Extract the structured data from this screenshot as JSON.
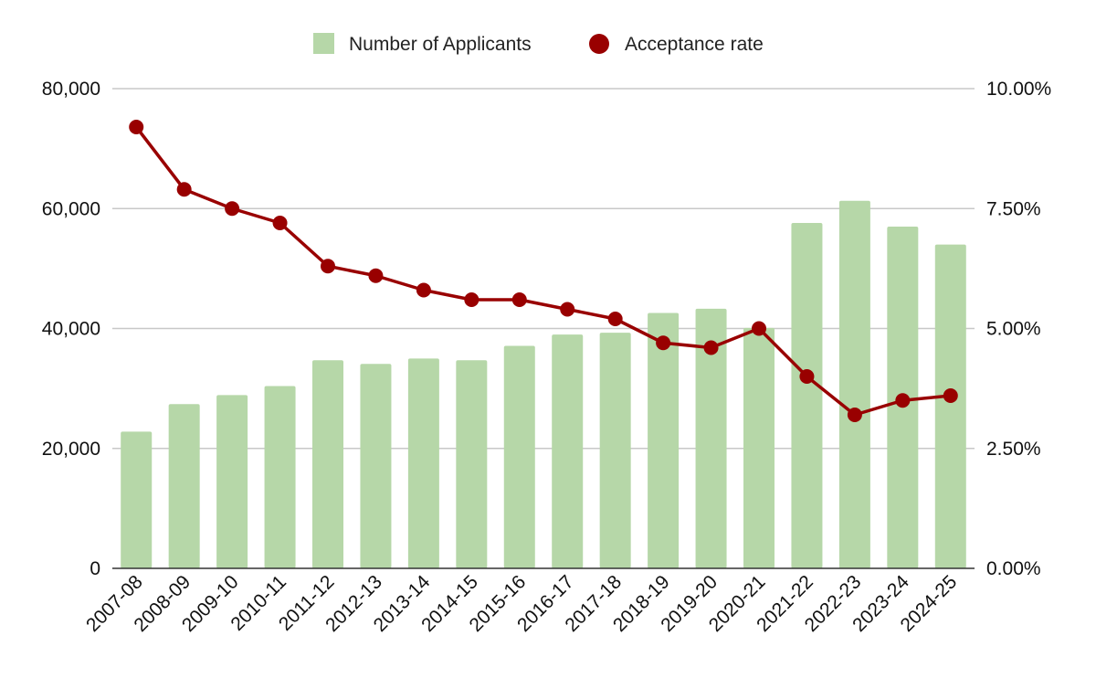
{
  "chart_data": {
    "type": "bar",
    "categories": [
      "2007-08",
      "2008-09",
      "2009-10",
      "2010-11",
      "2011-12",
      "2012-13",
      "2013-14",
      "2014-15",
      "2015-16",
      "2016-17",
      "2017-18",
      "2018-19",
      "2019-20",
      "2020-21",
      "2021-22",
      "2022-23",
      "2023-24",
      "2024-25"
    ],
    "series": [
      {
        "name": "Number of Applicants",
        "type": "bar",
        "axis": "left",
        "color": "#b6d7a8",
        "values": [
          22800,
          27400,
          28900,
          30400,
          34700,
          34100,
          35000,
          34700,
          37100,
          39000,
          39300,
          42600,
          43300,
          40100,
          57600,
          61300,
          57000,
          54000
        ]
      },
      {
        "name": "Acceptance rate",
        "type": "line",
        "axis": "right",
        "color": "#990000",
        "values": [
          0.092,
          0.079,
          0.075,
          0.072,
          0.063,
          0.061,
          0.058,
          0.056,
          0.056,
          0.054,
          0.052,
          0.047,
          0.046,
          0.05,
          0.04,
          0.032,
          0.035,
          0.036
        ]
      }
    ],
    "y_left": {
      "lim": [
        0,
        80000
      ],
      "ticks": [
        0,
        20000,
        40000,
        60000,
        80000
      ],
      "tick_labels": [
        "0",
        "20,000",
        "40,000",
        "60,000",
        "80,000"
      ]
    },
    "y_right": {
      "lim": [
        0,
        0.1
      ],
      "ticks": [
        0,
        0.025,
        0.05,
        0.075,
        0.1
      ],
      "tick_labels": [
        "0.00%",
        "2.50%",
        "5.00%",
        "7.50%",
        "10.00%"
      ]
    },
    "title": "",
    "xlabel": "",
    "ylabel": "",
    "grid": true,
    "legend_position": "top-center"
  }
}
